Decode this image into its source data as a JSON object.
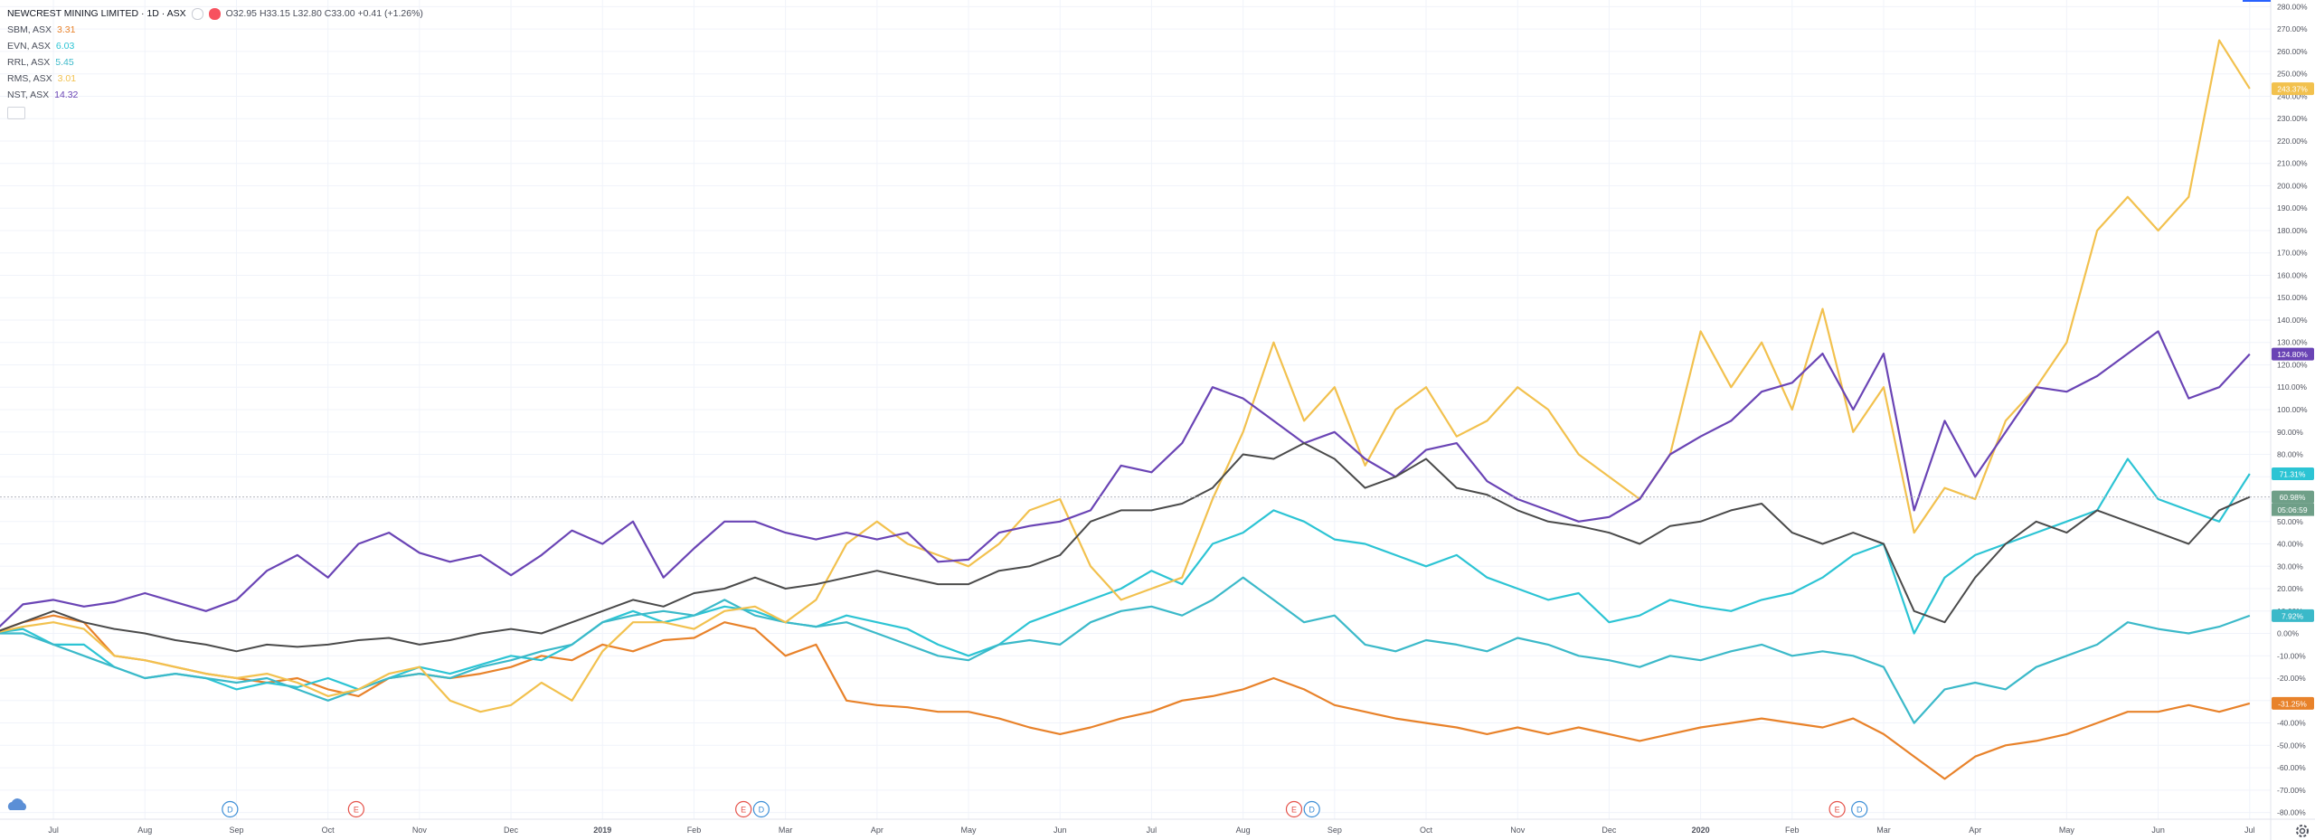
{
  "chart_data": {
    "type": "line",
    "title": "NEWCREST MINING LIMITED · 1D · ASX",
    "ohlc": "O32.95 H33.15 L32.80 C33.00 +0.41 (+1.26%)",
    "countdown": "05:06:59",
    "categories": [
      null,
      null,
      "Jul",
      null,
      null,
      "Aug",
      null,
      null,
      "Sep",
      null,
      null,
      "Oct",
      null,
      null,
      "Nov",
      null,
      null,
      "Dec",
      null,
      null,
      "2019",
      null,
      null,
      "Feb",
      null,
      null,
      "Mar",
      null,
      null,
      "Apr",
      null,
      null,
      "May",
      null,
      null,
      "Jun",
      null,
      null,
      "Jul",
      null,
      null,
      "Aug",
      null,
      null,
      "Sep",
      null,
      null,
      "Oct",
      null,
      null,
      "Nov",
      null,
      null,
      "Dec",
      null,
      null,
      "2020",
      null,
      null,
      "Feb",
      null,
      null,
      "Mar",
      null,
      null,
      "Apr",
      null,
      null,
      "May",
      null,
      null,
      "Jun",
      null,
      null,
      "Jul"
    ],
    "main": {
      "color": "#4a4a4a",
      "tag_color": "#6f9f88",
      "price_label": "60.98%",
      "values": [
        0,
        5,
        10,
        5,
        2,
        0,
        -3,
        -5,
        -8,
        -5,
        -6,
        -5,
        -3,
        -2,
        -5,
        -3,
        0,
        2,
        0,
        5,
        10,
        15,
        12,
        18,
        20,
        25,
        20,
        22,
        25,
        28,
        25,
        22,
        22,
        28,
        30,
        35,
        50,
        55,
        55,
        58,
        65,
        80,
        78,
        85,
        78,
        65,
        70,
        78,
        65,
        62,
        55,
        50,
        48,
        45,
        40,
        48,
        50,
        55,
        58,
        45,
        40,
        45,
        40,
        10,
        5,
        25,
        40,
        50,
        45,
        55,
        50,
        45,
        40,
        55,
        60.98
      ]
    },
    "series": [
      {
        "name": "SBM, ASX",
        "price": 3.31,
        "color": "#e8822a",
        "price_label": "-31.25%",
        "values": [
          0,
          5,
          8,
          5,
          -10,
          -12,
          -15,
          -18,
          -20,
          -22,
          -20,
          -25,
          -28,
          -20,
          -18,
          -20,
          -18,
          -15,
          -10,
          -12,
          -5,
          -8,
          -3,
          -2,
          5,
          2,
          -10,
          -5,
          -30,
          -32,
          -33,
          -35,
          -35,
          -38,
          -42,
          -45,
          -42,
          -38,
          -35,
          -30,
          -28,
          -25,
          -20,
          -25,
          -32,
          -35,
          -38,
          -40,
          -42,
          -45,
          -42,
          -45,
          -42,
          -45,
          -48,
          -45,
          -42,
          -40,
          -38,
          -40,
          -42,
          -38,
          -45,
          -55,
          -65,
          -55,
          -50,
          -48,
          -45,
          -40,
          -35,
          -35,
          -32,
          -35,
          -31.25
        ]
      },
      {
        "name": "EVN, ASX",
        "price": 6.03,
        "color": "#2cc4d4",
        "price_label": "71.31%",
        "values": [
          0,
          2,
          -5,
          -5,
          -15,
          -20,
          -18,
          -20,
          -25,
          -22,
          -24,
          -20,
          -25,
          -20,
          -15,
          -18,
          -14,
          -10,
          -12,
          -5,
          5,
          10,
          5,
          8,
          12,
          10,
          5,
          3,
          8,
          5,
          2,
          -5,
          -10,
          -5,
          5,
          10,
          15,
          20,
          28,
          22,
          40,
          45,
          55,
          50,
          42,
          40,
          35,
          30,
          35,
          25,
          20,
          15,
          18,
          5,
          8,
          15,
          12,
          10,
          15,
          18,
          25,
          35,
          40,
          0,
          25,
          35,
          40,
          45,
          50,
          55,
          78,
          60,
          55,
          50,
          71.31
        ]
      },
      {
        "name": "RRL, ASX",
        "price": 5.45,
        "color": "#3bb9c9",
        "price_label": "7.92%",
        "values": [
          0,
          0,
          -5,
          -10,
          -15,
          -20,
          -18,
          -20,
          -22,
          -20,
          -25,
          -30,
          -25,
          -20,
          -18,
          -20,
          -15,
          -12,
          -8,
          -5,
          5,
          8,
          10,
          8,
          15,
          8,
          5,
          3,
          5,
          0,
          -5,
          -10,
          -12,
          -5,
          -3,
          -5,
          5,
          10,
          12,
          8,
          15,
          25,
          15,
          5,
          8,
          -5,
          -8,
          -3,
          -5,
          -8,
          -2,
          -5,
          -10,
          -12,
          -15,
          -10,
          -12,
          -8,
          -5,
          -10,
          -8,
          -10,
          -15,
          -40,
          -25,
          -22,
          -25,
          -15,
          -10,
          -5,
          5,
          2,
          0,
          3,
          7.92
        ]
      },
      {
        "name": "RMS, ASX",
        "price": 3.01,
        "color": "#f2c14e",
        "price_label": "243.37%",
        "values": [
          0,
          3,
          5,
          2,
          -10,
          -12,
          -15,
          -18,
          -20,
          -18,
          -22,
          -28,
          -25,
          -18,
          -15,
          -30,
          -35,
          -32,
          -22,
          -30,
          -8,
          5,
          5,
          2,
          10,
          12,
          5,
          15,
          40,
          50,
          40,
          35,
          30,
          40,
          55,
          60,
          30,
          15,
          20,
          25,
          60,
          90,
          130,
          95,
          110,
          75,
          100,
          110,
          88,
          95,
          110,
          100,
          80,
          70,
          60,
          80,
          135,
          110,
          130,
          100,
          145,
          90,
          110,
          45,
          65,
          60,
          95,
          110,
          130,
          180,
          195,
          180,
          195,
          265,
          243.37
        ]
      },
      {
        "name": "NST, ASX",
        "price": 14.32,
        "color": "#6a44b5",
        "price_label": "124.80%",
        "values": [
          0,
          13,
          15,
          12,
          14,
          18,
          14,
          10,
          15,
          28,
          35,
          25,
          40,
          45,
          36,
          32,
          35,
          26,
          35,
          46,
          40,
          50,
          25,
          38,
          50,
          50,
          45,
          42,
          45,
          42,
          45,
          32,
          33,
          45,
          48,
          50,
          55,
          75,
          72,
          85,
          110,
          105,
          95,
          85,
          90,
          78,
          70,
          82,
          85,
          68,
          60,
          55,
          50,
          52,
          60,
          80,
          88,
          95,
          108,
          112,
          125,
          100,
          125,
          55,
          95,
          70,
          90,
          110,
          108,
          115,
          125,
          135,
          105,
          110,
          124.8
        ]
      }
    ],
    "events": [
      "D",
      "E",
      "E",
      "D",
      "E",
      "D",
      "E",
      "D"
    ],
    "ylim": [
      -83,
      283
    ],
    "yticks": [
      {
        "value": -80,
        "label": "-80.00%"
      },
      {
        "value": -70,
        "label": "-70.00%"
      },
      {
        "value": -60,
        "label": "-60.00%"
      },
      {
        "value": -50,
        "label": "-50.00%"
      },
      {
        "value": -40,
        "label": "-40.00%"
      },
      {
        "value": -30,
        "label": "-30.00%"
      },
      {
        "value": -20,
        "label": "-20.00%"
      },
      {
        "value": -10,
        "label": "-10.00%"
      },
      {
        "value": 0,
        "label": "0.00%"
      },
      {
        "value": 10,
        "label": "10.00%"
      },
      {
        "value": 20,
        "label": "20.00%"
      },
      {
        "value": 30,
        "label": "30.00%"
      },
      {
        "value": 40,
        "label": "40.00%"
      },
      {
        "value": 50,
        "label": "50.00%"
      },
      {
        "value": 60,
        "label": "60.00%"
      },
      {
        "value": 70,
        "label": "70.00%"
      },
      {
        "value": 80,
        "label": "80.00%"
      },
      {
        "value": 90,
        "label": "90.00%"
      },
      {
        "value": 100,
        "label": "100.00%"
      },
      {
        "value": 110,
        "label": "110.00%"
      },
      {
        "value": 120,
        "label": "120.00%"
      },
      {
        "value": 130,
        "label": "130.00%"
      },
      {
        "value": 140,
        "label": "140.00%"
      },
      {
        "value": 150,
        "label": "150.00%"
      },
      {
        "value": 160,
        "label": "160.00%"
      },
      {
        "value": 170,
        "label": "170.00%"
      },
      {
        "value": 180,
        "label": "180.00%"
      },
      {
        "value": 190,
        "label": "190.00%"
      },
      {
        "value": 200,
        "label": "200.00%"
      },
      {
        "value": 210,
        "label": "210.00%"
      },
      {
        "value": 220,
        "label": "220.00%"
      },
      {
        "value": 230,
        "label": "230.00%"
      },
      {
        "value": 240,
        "label": "240.00%"
      },
      {
        "value": 250,
        "label": "250.00%"
      },
      {
        "value": 260,
        "label": "260.00%"
      },
      {
        "value": 270,
        "label": "270.00%"
      },
      {
        "value": 280,
        "label": "280.00%"
      }
    ],
    "grid": true
  }
}
